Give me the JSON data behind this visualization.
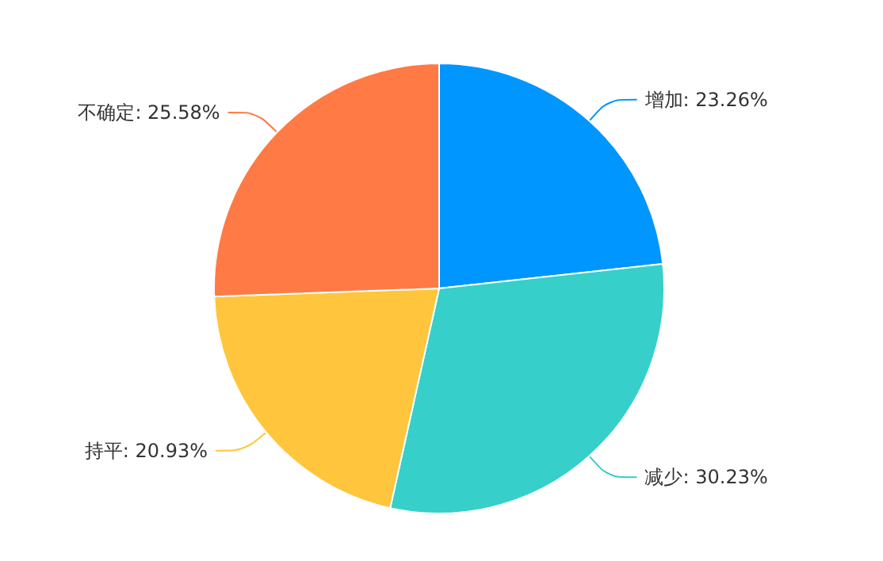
{
  "chart_data": {
    "type": "pie",
    "categories": [
      "增加",
      "减少",
      "持平",
      "不确定"
    ],
    "values": [
      23.26,
      30.23,
      20.93,
      25.58
    ],
    "value_labels": [
      "23.26%",
      "30.23%",
      "20.93%",
      "25.58%"
    ],
    "colors": [
      "#0096ff",
      "#36cfc9",
      "#ffc53d",
      "#ff7a45"
    ],
    "legend": false
  }
}
